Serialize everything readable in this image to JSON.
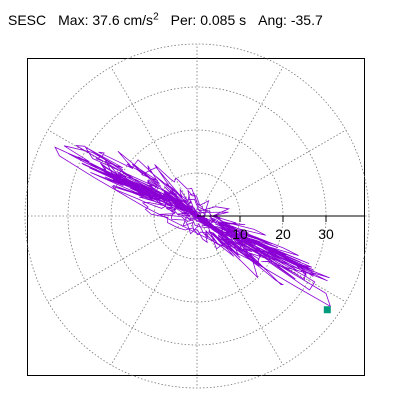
{
  "header": {
    "station": "SESC",
    "max_label": "Max:",
    "max_value": "37.6",
    "max_unit": "cm/s",
    "max_exp": "2",
    "per_label": "Per:",
    "per_value": "0.085 s",
    "ang_label": "Ang:",
    "ang_value": "-35.7"
  },
  "chart_data": {
    "type": "polar-orbit",
    "title": "",
    "radial_ticks": [
      "10",
      "20",
      "30"
    ],
    "radial_tick_values": [
      10,
      20,
      30
    ],
    "grid_rings": [
      10,
      20,
      30,
      40
    ],
    "angular_grid_step_deg": 30,
    "grid": true,
    "axis_angle_deg": -35.7,
    "max_amplitude": 37.6,
    "end_marker": {
      "x": 30.3,
      "y": -21.8,
      "color": "#009b7d"
    },
    "trace_color": "#8a00d4",
    "envelope": [
      [
        -33,
        16
      ],
      [
        -20,
        10
      ],
      [
        -10,
        6
      ],
      [
        0,
        0
      ],
      [
        10,
        -6
      ],
      [
        20,
        -12
      ],
      [
        30,
        -18
      ],
      [
        31,
        -21
      ],
      [
        24,
        -17
      ],
      [
        12,
        -10
      ],
      [
        0,
        -4
      ],
      [
        -12,
        2
      ],
      [
        -24,
        9
      ],
      [
        -32,
        14
      ]
    ]
  }
}
